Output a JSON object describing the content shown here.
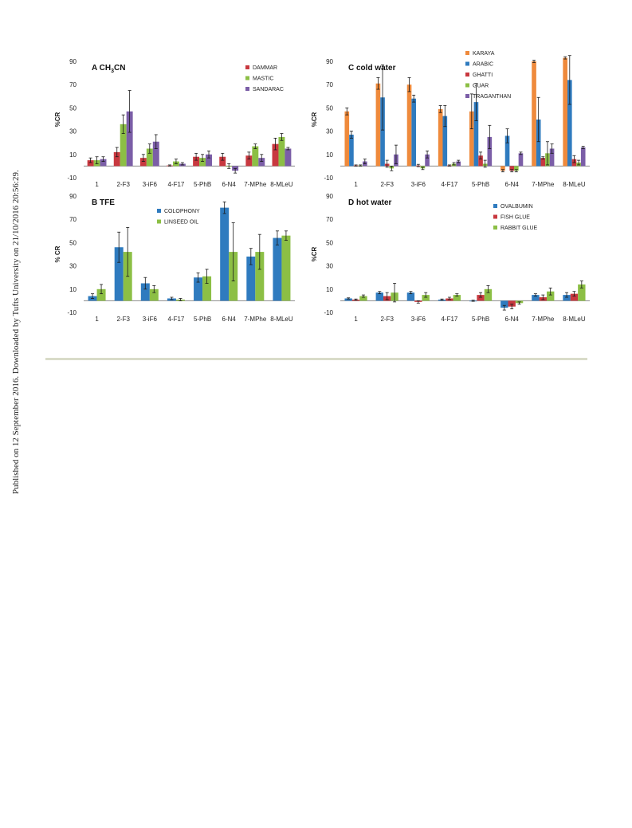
{
  "side_note": "Published on 12 September 2016. Downloaded by Tufts University on 21/10/2016 20:56:29.",
  "colors": {
    "blue": "#2f7bbf",
    "red": "#c8383f",
    "green": "#8cbf45",
    "purple": "#7b5ea7",
    "orange": "#ef8a3c"
  },
  "chart_data": [
    {
      "type": "bar",
      "title": "A CH",
      "title_sub": "3",
      "title_end": "CN",
      "ylabel": "%CR",
      "ylim": [
        -10,
        90
      ],
      "yticks": [
        "-10",
        "10",
        "30",
        "50",
        "70",
        "90"
      ],
      "categories": [
        "1",
        "2-F3",
        "3-iF6",
        "4-F17",
        "5-PhB",
        "6-N4",
        "7-MPhe",
        "8-MLeU"
      ],
      "legend_position": "top-right",
      "series": [
        {
          "name": "DAMMAR",
          "color": "#c8383f",
          "values": [
            5,
            12,
            7,
            0.5,
            8,
            8,
            9,
            19
          ],
          "errors": [
            2,
            4,
            3,
            0.5,
            3,
            3,
            3,
            5
          ]
        },
        {
          "name": "MASTIC",
          "color": "#8cbf45",
          "values": [
            5,
            36,
            15,
            4,
            7,
            0,
            17,
            25
          ],
          "errors": [
            3,
            8,
            4,
            2,
            3,
            2,
            2,
            3
          ]
        },
        {
          "name": "SANDARAC",
          "color": "#7b5ea7",
          "values": [
            6,
            47,
            21,
            2,
            10,
            -4,
            7,
            15
          ],
          "errors": [
            2,
            18,
            6,
            1,
            3,
            2,
            3,
            1
          ]
        }
      ]
    },
    {
      "type": "bar",
      "title": "C cold water",
      "ylabel": "%CR",
      "ylim": [
        -10,
        90
      ],
      "yticks": [
        "-10",
        "10",
        "30",
        "50",
        "70",
        "90"
      ],
      "categories": [
        "1",
        "2-F3",
        "3-iF6",
        "4-F17",
        "5-PhB",
        "6-N4",
        "7-MPhe",
        "8-MLeU"
      ],
      "legend_position": "top-right",
      "series": [
        {
          "name": "KARAYA",
          "color": "#ef8a3c",
          "values": [
            47,
            71,
            70,
            49,
            47,
            -4,
            90,
            93
          ],
          "errors": [
            3,
            5,
            6,
            3,
            15,
            1,
            1,
            1
          ]
        },
        {
          "name": "ARABIC",
          "color": "#2f7bbf",
          "values": [
            27,
            59,
            58,
            43,
            55,
            26,
            40,
            74
          ],
          "errors": [
            3,
            28,
            3,
            9,
            16,
            6,
            19,
            21
          ]
        },
        {
          "name": "GHATTI",
          "color": "#c8383f",
          "values": [
            0.5,
            2,
            0.5,
            0.5,
            9,
            -4,
            7,
            6
          ],
          "errors": [
            0.5,
            3,
            1,
            0.5,
            3,
            1,
            1,
            3
          ]
        },
        {
          "name": "GUAR",
          "color": "#8cbf45",
          "values": [
            0.5,
            -2,
            -2,
            2,
            2,
            -4,
            11,
            3
          ],
          "errors": [
            0.5,
            2,
            1,
            1,
            3,
            1,
            10,
            2
          ]
        },
        {
          "name": "TRAGANTHAN",
          "color": "#7b5ea7",
          "values": [
            4,
            10,
            10,
            4,
            25,
            11,
            15,
            16
          ],
          "errors": [
            2,
            8,
            3,
            1,
            10,
            1,
            4,
            1
          ]
        }
      ]
    },
    {
      "type": "bar",
      "title": "B TFE",
      "ylabel": "% CR",
      "ylim": [
        -10,
        90
      ],
      "yticks": [
        "-10",
        "10",
        "30",
        "50",
        "70",
        "90"
      ],
      "categories": [
        "1",
        "2-F3",
        "3-iF6",
        "4-F17",
        "5-PhB",
        "6-N4",
        "7-MPhe",
        "8-MLeU"
      ],
      "legend_position": "top-right",
      "series": [
        {
          "name": "COLOPHONY",
          "color": "#2f7bbf",
          "values": [
            4,
            46,
            15,
            2,
            20,
            80,
            38,
            54
          ],
          "errors": [
            2,
            13,
            5,
            1,
            4,
            5,
            7,
            6
          ]
        },
        {
          "name": "LINSEED OIL",
          "color": "#8cbf45",
          "values": [
            10,
            42,
            10,
            1,
            21,
            42,
            42,
            56
          ],
          "errors": [
            4,
            21,
            3,
            1,
            6,
            25,
            15,
            4
          ]
        }
      ]
    },
    {
      "type": "bar",
      "title": "D hot water",
      "ylabel": "%CR",
      "ylim": [
        -10,
        90
      ],
      "yticks": [
        "-10",
        "10",
        "30",
        "50",
        "70",
        "90"
      ],
      "categories": [
        "1",
        "2-F3",
        "3-iF6",
        "4-F17",
        "5-PhB",
        "6-N4",
        "7-MPhe",
        "8-MLeU"
      ],
      "legend_position": "top-right",
      "series": [
        {
          "name": "OVALBUMIN",
          "color": "#2f7bbf",
          "values": [
            2,
            7,
            7,
            1,
            0,
            -6,
            5,
            5
          ],
          "errors": [
            0.5,
            1,
            1,
            0.5,
            0.5,
            2,
            1,
            2
          ]
        },
        {
          "name": "FISH GLUE",
          "color": "#c8383f",
          "values": [
            1,
            4,
            -1,
            2,
            5,
            -5,
            3,
            6
          ],
          "errors": [
            0.5,
            3,
            1,
            1,
            2,
            2,
            2,
            2
          ]
        },
        {
          "name": "RABBIT GLUE",
          "color": "#8cbf45",
          "values": [
            4,
            7,
            5,
            5,
            10,
            -2,
            8,
            14
          ],
          "errors": [
            1,
            8,
            2,
            1,
            3,
            1,
            3,
            3
          ]
        }
      ]
    }
  ]
}
